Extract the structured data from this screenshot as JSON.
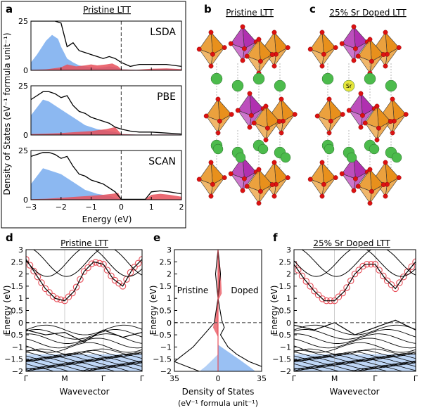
{
  "panels": {
    "a": {
      "letter": "a",
      "title": "Pristine LTT",
      "ylabel": "Density of States (eV⁻¹ formula unit⁻¹)",
      "xlabel": "Energy (eV)",
      "subplots": [
        "LSDA",
        "PBE",
        "SCAN"
      ]
    },
    "b": {
      "letter": "b",
      "title": "Pristine LTT"
    },
    "c": {
      "letter": "c",
      "title": "25% Sr Doped LTT",
      "atom_label": "Sr"
    },
    "d": {
      "letter": "d",
      "title": "Pristine LTT",
      "ylabel": "Energy (eV)",
      "xlabel": "Wavevector"
    },
    "e": {
      "letter": "e",
      "ylabel": "Energy (eV)",
      "xlabel": "Density of States",
      "xlabel2": "(eV⁻¹ formula unit⁻¹)",
      "left_label": "Pristine",
      "right_label": "Doped"
    },
    "f": {
      "letter": "f",
      "title": "25% Sr Doped LTT",
      "ylabel": "Energy (eV)",
      "xlabel": "Wavevector"
    }
  },
  "colors": {
    "blue": "#80b0f0",
    "red": "#e8505a",
    "black": "#000000",
    "orange": "#e8901c",
    "magenta": "#b030b0",
    "green": "#4cbb4c",
    "red_atom": "#dd1111",
    "sr": "#e6e63a"
  },
  "chart_data": [
    {
      "type": "area",
      "panel": "a",
      "subplot": "LSDA",
      "xlim": [
        -3,
        2
      ],
      "ylim": [
        0,
        25
      ],
      "xticks": [
        -3,
        -2,
        -1,
        0,
        1,
        2
      ],
      "yticks": [
        0,
        25
      ],
      "fermi_level": 0,
      "series": [
        {
          "color": "#80b0f0",
          "x": [
            -3,
            -2.8,
            -2.5,
            -2.3,
            -2.1,
            -2.0,
            -1.9,
            -1.8,
            -1.6,
            -1.4,
            -1.2,
            -1.0,
            -0.8,
            -0.6,
            -0.4,
            -0.2,
            0,
            0.5,
            1.0,
            1.5,
            2.0
          ],
          "values": [
            4,
            8,
            15,
            18,
            16,
            12,
            9,
            6,
            4,
            2.5,
            2,
            1.5,
            1.2,
            1.5,
            2,
            1.5,
            0.5,
            0.3,
            0.5,
            0.8,
            0.5
          ]
        },
        {
          "color": "#e8505a",
          "x": [
            -3,
            -2.5,
            -2.0,
            -1.8,
            -1.5,
            -1.2,
            -1.0,
            -0.8,
            -0.5,
            -0.3,
            -0.1,
            0,
            0.5,
            1.0,
            1.5,
            2.0
          ],
          "values": [
            0.3,
            0.5,
            1.5,
            3,
            2,
            2.5,
            3,
            2.5,
            3,
            3.5,
            2,
            0.5,
            0.3,
            0.8,
            1.0,
            0.6
          ]
        },
        {
          "color": "#000000",
          "x": [
            -3,
            -2.8,
            -2.6,
            -2.4,
            -2.2,
            -2.0,
            -1.8,
            -1.6,
            -1.4,
            -1.2,
            -1.0,
            -0.8,
            -0.6,
            -0.4,
            -0.2,
            0,
            0.3,
            0.6,
            1.0,
            1.5,
            2.0
          ],
          "values": [
            25,
            25,
            25,
            25,
            25,
            24,
            12,
            14,
            10,
            9,
            8,
            7,
            6,
            7,
            6,
            4,
            2,
            3,
            3,
            3,
            2
          ]
        }
      ]
    },
    {
      "type": "area",
      "panel": "a",
      "subplot": "PBE",
      "xlim": [
        -3,
        2
      ],
      "ylim": [
        0,
        25
      ],
      "xticks": [
        -3,
        -2,
        -1,
        0,
        1,
        2
      ],
      "yticks": [
        0,
        25
      ],
      "fermi_level": 0,
      "series": [
        {
          "color": "#80b0f0",
          "x": [
            -3,
            -2.8,
            -2.6,
            -2.4,
            -2.2,
            -2.0,
            -1.8,
            -1.6,
            -1.4,
            -1.2,
            -1.0,
            -0.8,
            -0.6,
            -0.4,
            -0.2,
            0,
            0.5,
            1.0,
            1.5,
            2.0
          ],
          "values": [
            10,
            14,
            18,
            17,
            15,
            13,
            11,
            9,
            7,
            5,
            4,
            3,
            2.5,
            2,
            1.5,
            0.5,
            0.2,
            0.2,
            0.3,
            0.2
          ]
        },
        {
          "color": "#e8505a",
          "x": [
            -3,
            -2.5,
            -2.0,
            -1.5,
            -1.0,
            -0.5,
            -0.2,
            0,
            0.5,
            1.0,
            1.5,
            2.0
          ],
          "values": [
            0.5,
            0.7,
            1,
            1.5,
            2,
            3,
            4,
            0.5,
            0.2,
            0.2,
            0.3,
            0.2
          ]
        },
        {
          "color": "#000000",
          "x": [
            -3,
            -2.8,
            -2.6,
            -2.4,
            -2.2,
            -2.0,
            -1.8,
            -1.6,
            -1.4,
            -1.2,
            -1.0,
            -0.8,
            -0.6,
            -0.4,
            -0.2,
            0,
            0.3,
            0.6,
            1.0,
            1.5,
            2.0
          ],
          "values": [
            18,
            20,
            22,
            22,
            21,
            19,
            20,
            15,
            12,
            11,
            9,
            8,
            7,
            6,
            4,
            3,
            2,
            1.5,
            1.5,
            1,
            0.5
          ]
        }
      ]
    },
    {
      "type": "area",
      "panel": "a",
      "subplot": "SCAN",
      "xlim": [
        -3,
        2
      ],
      "ylim": [
        0,
        25
      ],
      "xticks": [
        -3,
        -2,
        -1,
        0,
        1,
        2
      ],
      "yticks": [
        0,
        25
      ],
      "fermi_level": 0,
      "series": [
        {
          "color": "#80b0f0",
          "x": [
            -3,
            -2.8,
            -2.6,
            -2.4,
            -2.2,
            -2.0,
            -1.8,
            -1.6,
            -1.4,
            -1.2,
            -1.0,
            -0.8,
            -0.6,
            -0.4,
            -0.2,
            0,
            0.5,
            1.0,
            1.5,
            2.0
          ],
          "values": [
            8,
            12,
            16,
            15,
            14,
            13,
            11,
            9,
            7,
            5,
            4,
            3,
            2.5,
            2,
            1,
            0.2,
            0.1,
            0.1,
            0.1,
            0.1
          ]
        },
        {
          "color": "#e8505a",
          "x": [
            -3,
            -2.5,
            -2.0,
            -1.5,
            -1.0,
            -0.6,
            -0.3,
            -0.1,
            0,
            0.8,
            1.0,
            1.3,
            1.6,
            2.0
          ],
          "values": [
            0.3,
            0.5,
            1,
            1.5,
            2,
            2.5,
            3,
            3.5,
            0.2,
            0.2,
            2.5,
            3,
            2.5,
            1.5
          ]
        },
        {
          "color": "#000000",
          "x": [
            -3,
            -2.8,
            -2.6,
            -2.4,
            -2.2,
            -2.0,
            -1.8,
            -1.6,
            -1.4,
            -1.2,
            -1.0,
            -0.8,
            -0.6,
            -0.4,
            -0.2,
            0,
            0.8,
            1.0,
            1.3,
            1.6,
            2.0
          ],
          "values": [
            22,
            23,
            24,
            24,
            23,
            21,
            22,
            17,
            13,
            12,
            10,
            9,
            8,
            6,
            4,
            0.2,
            0.2,
            4,
            4.5,
            4,
            3
          ]
        }
      ]
    },
    {
      "type": "line",
      "panel": "d",
      "ylim": [
        -2,
        3
      ],
      "yticks": [
        -2,
        -1.5,
        -1,
        -0.5,
        0,
        0.5,
        1,
        1.5,
        2,
        2.5,
        3
      ],
      "categories": [
        "Γ",
        "M",
        "Γ̅",
        "Γ"
      ],
      "fermi_level": 0,
      "bands": [
        {
          "name": "upper",
          "x": [
            0,
            0.25,
            0.5,
            0.75,
            1,
            1.25,
            1.5,
            1.75,
            2,
            2.25,
            2.5,
            2.75,
            3
          ],
          "values": [
            2.6,
            2.0,
            1.4,
            1.0,
            0.9,
            1.3,
            2.1,
            2.5,
            2.4,
            1.8,
            1.5,
            2.2,
            2.6
          ]
        },
        {
          "name": "valence",
          "x": [
            0,
            0.5,
            1,
            1.5,
            2,
            2.5,
            3
          ],
          "values": [
            -0.3,
            -0.5,
            -0.4,
            -0.8,
            -0.3,
            -0.6,
            -0.4
          ]
        }
      ]
    },
    {
      "type": "line",
      "panel": "e",
      "xlim": [
        -35,
        35
      ],
      "ylim": [
        -2,
        3
      ],
      "xticks": [
        -35,
        0,
        35
      ],
      "xticklabels": [
        "35",
        "0",
        "35"
      ],
      "yticks": [
        -2,
        -1.5,
        -1,
        -0.5,
        0,
        0.5,
        1,
        1.5,
        2,
        2.5,
        3
      ],
      "fermi_level": 0,
      "series": [
        {
          "color": "#000000",
          "x": [
            0,
            2,
            1,
            0,
            3,
            5,
            2,
            8,
            15,
            25,
            35
          ],
          "values": [
            3,
            2,
            1.5,
            1,
            0.1,
            -0.2,
            -0.5,
            -1,
            -1.3,
            -1.6,
            -1.8
          ]
        },
        {
          "color": "#000000",
          "x": [
            0,
            -2,
            -1,
            0,
            -3,
            -8,
            -20,
            -30,
            -35,
            -25,
            -15
          ],
          "values": [
            3,
            2,
            1.5,
            1,
            0,
            -0.3,
            -1,
            -1.4,
            -1.6,
            -1.8,
            -2
          ]
        }
      ]
    },
    {
      "type": "line",
      "panel": "f",
      "ylim": [
        -2,
        3
      ],
      "yticks": [
        -2,
        -1.5,
        -1,
        -0.5,
        0,
        0.5,
        1,
        1.5,
        2,
        2.5,
        3
      ],
      "categories": [
        "Γ",
        "M",
        "Γ̅",
        "Γ"
      ],
      "fermi_level": 0,
      "bands": [
        {
          "name": "upper",
          "x": [
            0,
            0.25,
            0.5,
            0.75,
            1,
            1.25,
            1.5,
            1.75,
            2,
            2.25,
            2.5,
            2.75,
            3
          ],
          "values": [
            2.4,
            1.8,
            1.3,
            0.9,
            0.9,
            1.3,
            2.0,
            2.4,
            2.4,
            1.8,
            1.4,
            2.0,
            2.5
          ]
        },
        {
          "name": "valence",
          "x": [
            0,
            0.5,
            1,
            1.5,
            2,
            2.5,
            3
          ],
          "values": [
            -0.1,
            -0.3,
            0.0,
            -0.5,
            -0.2,
            0.1,
            -0.3
          ]
        }
      ]
    }
  ]
}
